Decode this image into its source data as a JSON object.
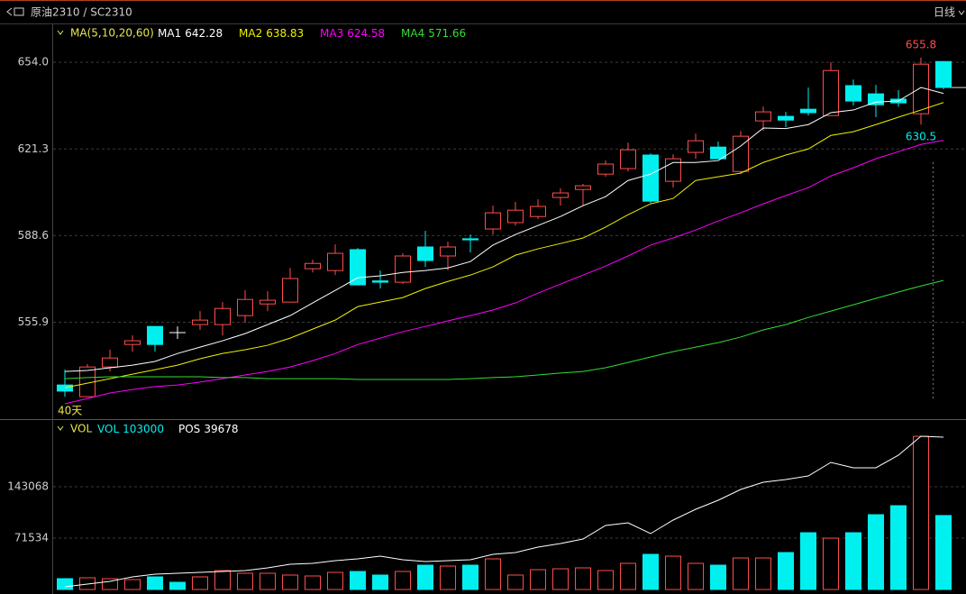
{
  "header": {
    "title": "原油2310 / SC2310",
    "period": "日线"
  },
  "chart_data": [
    {
      "type": "candlestick",
      "indicator_label": "MA(5,10,20,60)",
      "range_label": "40天",
      "up_color": "#ff4d4d",
      "down_color": "#00f0f0",
      "flat_color": "#ffffff",
      "ylim": [
        520,
        668
      ],
      "yticks": [
        {
          "value": 654,
          "label": "654.0"
        },
        621.3,
        588.6,
        555.9
      ],
      "grid": true,
      "open": [
        532.2,
        527.8,
        539.0,
        547.5,
        554.3,
        552.0,
        555.0,
        555.0,
        558.4,
        562.8,
        563.5,
        576.1,
        575.4,
        583.3,
        571.5,
        571.0,
        584.3,
        580.9,
        587.4,
        591.1,
        593.5,
        595.8,
        603.0,
        606.0,
        611.8,
        613.9,
        619.0,
        609.1,
        620.0,
        622.0,
        612.8,
        631.9,
        633.6,
        636.3,
        633.9,
        645.2,
        642.1,
        640.1,
        634.6,
        654.3
      ],
      "high": [
        538.0,
        540.1,
        545.5,
        550.9,
        554.3,
        554.3,
        560.1,
        563.5,
        568.0,
        567.6,
        576.4,
        579.5,
        585.3,
        583.9,
        575.4,
        581.9,
        590.4,
        586.3,
        589.0,
        599.9,
        601.3,
        602.3,
        606.4,
        608.1,
        617.0,
        623.7,
        619.6,
        619.3,
        627.1,
        624.1,
        628.1,
        637.3,
        635.3,
        644.5,
        654.0,
        647.5,
        645.5,
        643.5,
        655.8,
        654.3
      ],
      "low": [
        527.8,
        527.8,
        537.3,
        544.8,
        544.8,
        549.6,
        553.0,
        550.9,
        555.7,
        560.1,
        563.5,
        574.7,
        573.7,
        570.0,
        568.6,
        570.3,
        576.8,
        575.4,
        582.2,
        589.0,
        592.4,
        594.8,
        599.9,
        599.9,
        610.8,
        612.8,
        600.9,
        606.7,
        617.6,
        617.6,
        611.8,
        628.1,
        629.5,
        633.9,
        633.9,
        637.7,
        633.3,
        637.3,
        630.5,
        643.8
      ],
      "close": [
        529.9,
        539.0,
        542.4,
        548.9,
        547.5,
        552.0,
        556.7,
        561.1,
        564.5,
        564.2,
        572.4,
        578.1,
        581.9,
        570.0,
        571.0,
        580.9,
        579.2,
        584.3,
        587.0,
        597.2,
        598.2,
        599.6,
        604.7,
        607.4,
        615.6,
        621.0,
        601.6,
        617.6,
        624.4,
        617.6,
        626.1,
        635.3,
        632.2,
        635.0,
        650.9,
        639.4,
        638.0,
        638.7,
        653.3,
        644.5
      ],
      "series": [
        {
          "name": "MA1",
          "color": "#ffffff",
          "values": [
            537.3,
            537.7,
            538.7,
            539.7,
            541.1,
            544.1,
            546.5,
            548.9,
            551.6,
            555.0,
            558.4,
            563.2,
            567.9,
            572.7,
            573.4,
            574.7,
            575.4,
            576.4,
            578.8,
            585.0,
            589.0,
            592.4,
            595.8,
            599.9,
            603.3,
            609.4,
            611.8,
            616.2,
            616.2,
            616.9,
            622.4,
            629.2,
            629.0,
            630.5,
            635.0,
            636.0,
            639.0,
            639.4,
            644.5,
            642.28
          ]
        },
        {
          "name": "MA2",
          "color": "#f0f000",
          "values": [
            531.2,
            532.9,
            534.6,
            536.3,
            538.0,
            539.7,
            542.1,
            544.1,
            545.5,
            547.2,
            549.9,
            553.3,
            556.7,
            561.8,
            563.5,
            565.2,
            568.6,
            571.3,
            573.7,
            576.8,
            581.2,
            583.6,
            585.6,
            587.7,
            591.8,
            596.5,
            600.6,
            602.6,
            609.4,
            610.8,
            612.2,
            616.2,
            619.0,
            621.3,
            626.4,
            627.8,
            630.5,
            633.3,
            636.0,
            638.83
          ]
        },
        {
          "name": "MA3",
          "color": "#ff00ff",
          "values": [
            525.1,
            527.1,
            529.2,
            530.5,
            531.6,
            532.2,
            533.3,
            534.6,
            536.0,
            537.3,
            539.0,
            541.4,
            544.1,
            547.5,
            549.9,
            552.3,
            554.3,
            556.4,
            558.4,
            560.5,
            563.2,
            566.9,
            570.3,
            573.7,
            577.1,
            580.9,
            585.0,
            587.7,
            590.7,
            594.1,
            597.2,
            600.6,
            603.7,
            606.7,
            611.1,
            614.2,
            617.6,
            620.3,
            623.0,
            624.58
          ]
        },
        {
          "name": "MA4",
          "color": "#33dd33",
          "values": [
            534.6,
            535.0,
            535.3,
            535.3,
            535.3,
            535.3,
            535.3,
            535.0,
            535.0,
            534.6,
            534.6,
            534.6,
            534.6,
            534.3,
            534.3,
            534.3,
            534.3,
            534.3,
            534.6,
            535.0,
            535.3,
            536.0,
            536.7,
            537.3,
            538.7,
            540.7,
            542.8,
            544.8,
            546.5,
            548.2,
            550.3,
            553.0,
            555.0,
            557.7,
            560.1,
            562.5,
            564.9,
            567.3,
            569.6,
            571.66
          ]
        }
      ]
    },
    {
      "type": "bar",
      "indicator_label": "VOL",
      "ylim": [
        0,
        236000
      ],
      "yticks": [
        71534,
        143068
      ],
      "grid": true,
      "y2lim": [
        0,
        44140
      ],
      "series": [
        {
          "name": "VOL",
          "color": "#00f0f0",
          "values": [
            15060,
            16315,
            15060,
            13805,
            17570,
            10040,
            17570,
            26355,
            22590,
            22590,
            20080,
            18825,
            23845,
            25100,
            20080,
            25100,
            33885,
            32630,
            33885,
            42670,
            20080,
            27610,
            28865,
            30120,
            26355,
            36395,
            48945,
            46435,
            36395,
            33885,
            43925,
            43925,
            51455,
            79065,
            71535,
            79065,
            104165,
            116715,
            213350,
            103000
          ]
        },
        {
          "name": "POS",
          "color": "#ffffff",
          "axis": "y2",
          "values": [
            704,
            1409,
            2113,
            3287,
            3992,
            4226,
            4461,
            4696,
            4931,
            5635,
            6574,
            6809,
            7514,
            7983,
            8688,
            7748,
            7279,
            7514,
            7748,
            9157,
            9627,
            11036,
            11975,
            13149,
            16671,
            17375,
            14558,
            18080,
            20897,
            23245,
            26063,
            27941,
            28646,
            29585,
            33107,
            31698,
            31698,
            34985,
            39916,
            39678
          ]
        }
      ]
    }
  ]
}
